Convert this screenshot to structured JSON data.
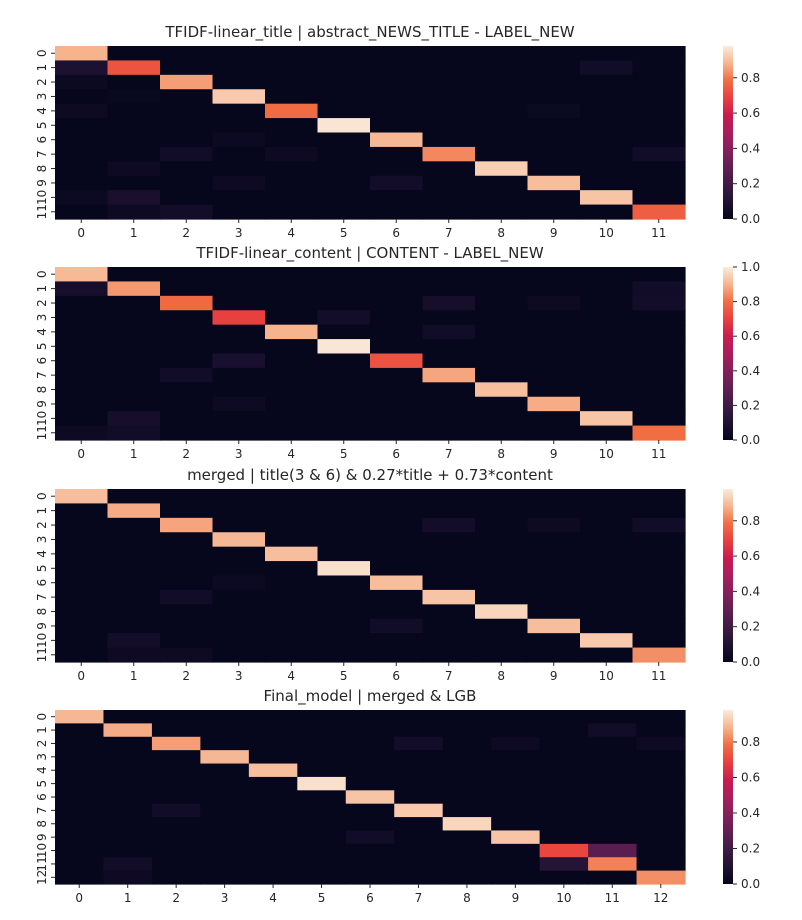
{
  "chart_data": [
    {
      "type": "heatmap",
      "title": "TFIDF-linear_title | abstract_NEWS_TITLE - LABEL_NEW",
      "x_ticks": [
        "0",
        "1",
        "2",
        "3",
        "4",
        "5",
        "6",
        "7",
        "8",
        "9",
        "10",
        "11"
      ],
      "y_ticks": [
        "0",
        "1",
        "2",
        "3",
        "4",
        "5",
        "6",
        "7",
        "8",
        "9",
        "10",
        "11"
      ],
      "colorbar": {
        "min": 0,
        "max": 0.98,
        "ticks": [
          0.0,
          0.2,
          0.4,
          0.6,
          0.8
        ],
        "tick_labels": [
          "0.0",
          "0.2",
          "0.4",
          "0.6",
          "0.8"
        ]
      },
      "diagonal": [
        0.88,
        0.73,
        0.85,
        0.92,
        0.78,
        0.97,
        0.89,
        0.82,
        0.93,
        0.9,
        0.91,
        0.75
      ],
      "off_diagonal": [
        [
          1,
          0,
          0.09
        ],
        [
          1,
          10,
          0.05
        ],
        [
          2,
          0,
          0.03
        ],
        [
          3,
          1,
          0.02
        ],
        [
          4,
          0,
          0.04
        ],
        [
          4,
          9,
          0.03
        ],
        [
          6,
          3,
          0.03
        ],
        [
          7,
          2,
          0.05
        ],
        [
          7,
          4,
          0.04
        ],
        [
          7,
          11,
          0.05
        ],
        [
          8,
          1,
          0.04
        ],
        [
          9,
          3,
          0.04
        ],
        [
          9,
          6,
          0.06
        ],
        [
          10,
          1,
          0.08
        ],
        [
          10,
          0,
          0.03
        ],
        [
          11,
          2,
          0.06
        ],
        [
          11,
          1,
          0.04
        ]
      ]
    },
    {
      "type": "heatmap",
      "title": "TFIDF-linear_content | CONTENT - LABEL_NEW",
      "x_ticks": [
        "0",
        "1",
        "2",
        "3",
        "4",
        "5",
        "6",
        "7",
        "8",
        "9",
        "10",
        "11"
      ],
      "y_ticks": [
        "0",
        "1",
        "2",
        "3",
        "4",
        "5",
        "6",
        "7",
        "8",
        "9",
        "10",
        "11"
      ],
      "colorbar": {
        "min": 0,
        "max": 1.0,
        "ticks": [
          0.0,
          0.2,
          0.4,
          0.6,
          0.8,
          1.0
        ],
        "tick_labels": [
          "0.0",
          "0.2",
          "0.4",
          "0.6",
          "0.8",
          "1.0"
        ]
      },
      "diagonal": [
        0.91,
        0.86,
        0.79,
        0.7,
        0.9,
        0.99,
        0.74,
        0.88,
        0.92,
        0.89,
        0.93,
        0.8
      ],
      "off_diagonal": [
        [
          1,
          0,
          0.07
        ],
        [
          1,
          11,
          0.05
        ],
        [
          2,
          7,
          0.07
        ],
        [
          2,
          11,
          0.06
        ],
        [
          2,
          9,
          0.04
        ],
        [
          3,
          5,
          0.06
        ],
        [
          4,
          7,
          0.05
        ],
        [
          6,
          3,
          0.08
        ],
        [
          7,
          2,
          0.05
        ],
        [
          9,
          3,
          0.04
        ],
        [
          10,
          1,
          0.07
        ],
        [
          11,
          1,
          0.05
        ],
        [
          11,
          0,
          0.04
        ]
      ]
    },
    {
      "type": "heatmap",
      "title": "merged | title(3 & 6) &  0.27*title + 0.73*content",
      "x_ticks": [
        "0",
        "1",
        "2",
        "3",
        "4",
        "5",
        "6",
        "7",
        "8",
        "9",
        "10",
        "11"
      ],
      "y_ticks": [
        "0",
        "1",
        "2",
        "3",
        "4",
        "5",
        "6",
        "7",
        "8",
        "9",
        "10",
        "11"
      ],
      "colorbar": {
        "min": 0,
        "max": 0.98,
        "ticks": [
          0.0,
          0.2,
          0.4,
          0.6,
          0.8
        ],
        "tick_labels": [
          "0.0",
          "0.2",
          "0.4",
          "0.6",
          "0.8"
        ]
      },
      "diagonal": [
        0.9,
        0.87,
        0.86,
        0.89,
        0.9,
        0.96,
        0.9,
        0.91,
        0.94,
        0.9,
        0.92,
        0.83
      ],
      "off_diagonal": [
        [
          2,
          7,
          0.06
        ],
        [
          2,
          11,
          0.05
        ],
        [
          2,
          9,
          0.04
        ],
        [
          6,
          3,
          0.03
        ],
        [
          7,
          2,
          0.05
        ],
        [
          9,
          6,
          0.05
        ],
        [
          10,
          1,
          0.06
        ],
        [
          11,
          2,
          0.04
        ],
        [
          11,
          1,
          0.04
        ]
      ]
    },
    {
      "type": "heatmap",
      "title": "Final_model | merged & LGB",
      "x_ticks": [
        "0",
        "1",
        "2",
        "3",
        "4",
        "5",
        "6",
        "7",
        "8",
        "9",
        "10",
        "11",
        "12"
      ],
      "y_ticks": [
        "0",
        "1",
        "2",
        "3",
        "4",
        "5",
        "6",
        "7",
        "8",
        "9",
        "10",
        "11",
        "12"
      ],
      "colorbar": {
        "min": 0,
        "max": 0.98,
        "ticks": [
          0.0,
          0.2,
          0.4,
          0.6,
          0.8
        ],
        "tick_labels": [
          "0.0",
          "0.2",
          "0.4",
          "0.6",
          "0.8"
        ]
      },
      "diagonal": [
        0.89,
        0.87,
        0.85,
        0.89,
        0.9,
        0.96,
        0.91,
        0.92,
        0.94,
        0.91,
        0.7,
        0.81,
        0.83
      ],
      "off_diagonal": [
        [
          1,
          11,
          0.05
        ],
        [
          2,
          7,
          0.06
        ],
        [
          2,
          12,
          0.04
        ],
        [
          2,
          9,
          0.04
        ],
        [
          7,
          2,
          0.05
        ],
        [
          9,
          6,
          0.05
        ],
        [
          10,
          11,
          0.27
        ],
        [
          11,
          10,
          0.12
        ],
        [
          11,
          1,
          0.06
        ],
        [
          12,
          1,
          0.04
        ]
      ]
    }
  ]
}
